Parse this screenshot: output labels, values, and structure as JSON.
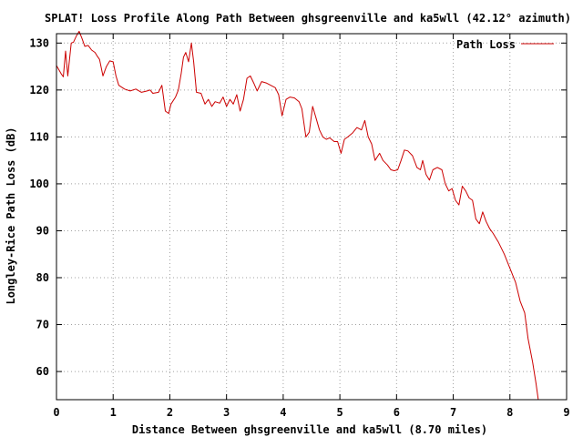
{
  "chart_data": {
    "type": "line",
    "title": "SPLAT! Loss Profile Along Path Between ghsgreenville and ka5wll (42.12° azimuth)",
    "xlabel": "Distance Between ghsgreenville and ka5wll (8.70 miles)",
    "ylabel": "Longley-Rice Path Loss (dB)",
    "xlim": [
      0,
      9
    ],
    "ylim": [
      54,
      132
    ],
    "x_ticks": [
      0,
      1,
      2,
      3,
      4,
      5,
      6,
      7,
      8,
      9
    ],
    "y_ticks": [
      60,
      70,
      80,
      90,
      100,
      110,
      120,
      130
    ],
    "grid": true,
    "legend_position": "top-right",
    "colors": {
      "series": "#cc0000",
      "grid": "#a0a0a0",
      "axis": "#000000"
    },
    "series": [
      {
        "name": "Path Loss",
        "points": [
          [
            0.0,
            125.2
          ],
          [
            0.08,
            123.5
          ],
          [
            0.12,
            122.8
          ],
          [
            0.16,
            128.3
          ],
          [
            0.2,
            123.0
          ],
          [
            0.26,
            130.0
          ],
          [
            0.3,
            130.2
          ],
          [
            0.35,
            131.5
          ],
          [
            0.4,
            132.5
          ],
          [
            0.45,
            131.0
          ],
          [
            0.5,
            129.3
          ],
          [
            0.56,
            129.5
          ],
          [
            0.62,
            128.5
          ],
          [
            0.68,
            128.0
          ],
          [
            0.72,
            127.2
          ],
          [
            0.76,
            126.5
          ],
          [
            0.82,
            123.0
          ],
          [
            0.88,
            125.0
          ],
          [
            0.94,
            126.2
          ],
          [
            1.0,
            126.0
          ],
          [
            1.05,
            123.0
          ],
          [
            1.1,
            121.0
          ],
          [
            1.2,
            120.2
          ],
          [
            1.3,
            119.8
          ],
          [
            1.4,
            120.2
          ],
          [
            1.5,
            119.5
          ],
          [
            1.6,
            119.8
          ],
          [
            1.65,
            120.0
          ],
          [
            1.7,
            119.3
          ],
          [
            1.8,
            119.5
          ],
          [
            1.86,
            121.0
          ],
          [
            1.92,
            115.5
          ],
          [
            1.98,
            115.0
          ],
          [
            2.02,
            117.0
          ],
          [
            2.1,
            118.5
          ],
          [
            2.15,
            120.0
          ],
          [
            2.2,
            123.5
          ],
          [
            2.24,
            127.0
          ],
          [
            2.28,
            128.0
          ],
          [
            2.33,
            126.0
          ],
          [
            2.38,
            130.0
          ],
          [
            2.42,
            126.0
          ],
          [
            2.47,
            119.5
          ],
          [
            2.55,
            119.3
          ],
          [
            2.62,
            117.0
          ],
          [
            2.68,
            118.0
          ],
          [
            2.74,
            116.5
          ],
          [
            2.8,
            117.5
          ],
          [
            2.88,
            117.2
          ],
          [
            2.94,
            118.5
          ],
          [
            3.0,
            116.5
          ],
          [
            3.06,
            118.0
          ],
          [
            3.12,
            117.0
          ],
          [
            3.18,
            119.0
          ],
          [
            3.24,
            115.5
          ],
          [
            3.3,
            118.0
          ],
          [
            3.36,
            122.5
          ],
          [
            3.42,
            123.0
          ],
          [
            3.48,
            121.5
          ],
          [
            3.54,
            119.8
          ],
          [
            3.62,
            121.8
          ],
          [
            3.7,
            121.5
          ],
          [
            3.78,
            121.0
          ],
          [
            3.86,
            120.5
          ],
          [
            3.92,
            119.0
          ],
          [
            3.98,
            114.5
          ],
          [
            4.05,
            118.0
          ],
          [
            4.12,
            118.5
          ],
          [
            4.2,
            118.3
          ],
          [
            4.28,
            117.5
          ],
          [
            4.33,
            116.0
          ],
          [
            4.4,
            110.0
          ],
          [
            4.46,
            111.0
          ],
          [
            4.52,
            116.5
          ],
          [
            4.58,
            114.0
          ],
          [
            4.64,
            111.5
          ],
          [
            4.7,
            110.0
          ],
          [
            4.76,
            109.5
          ],
          [
            4.82,
            109.8
          ],
          [
            4.9,
            109.0
          ],
          [
            4.96,
            109.0
          ],
          [
            5.02,
            106.5
          ],
          [
            5.08,
            109.5
          ],
          [
            5.14,
            110.0
          ],
          [
            5.22,
            110.8
          ],
          [
            5.3,
            112.0
          ],
          [
            5.38,
            111.5
          ],
          [
            5.44,
            113.5
          ],
          [
            5.5,
            110.0
          ],
          [
            5.56,
            108.5
          ],
          [
            5.62,
            105.0
          ],
          [
            5.7,
            106.5
          ],
          [
            5.76,
            105.0
          ],
          [
            5.84,
            104.0
          ],
          [
            5.9,
            103.0
          ],
          [
            5.96,
            102.8
          ],
          [
            6.02,
            103.0
          ],
          [
            6.08,
            105.0
          ],
          [
            6.14,
            107.2
          ],
          [
            6.2,
            107.0
          ],
          [
            6.28,
            106.0
          ],
          [
            6.36,
            103.5
          ],
          [
            6.42,
            103.0
          ],
          [
            6.46,
            105.0
          ],
          [
            6.52,
            102.0
          ],
          [
            6.58,
            100.8
          ],
          [
            6.64,
            103.0
          ],
          [
            6.72,
            103.5
          ],
          [
            6.8,
            103.0
          ],
          [
            6.86,
            100.0
          ],
          [
            6.92,
            98.5
          ],
          [
            6.98,
            99.0
          ],
          [
            7.04,
            96.5
          ],
          [
            7.1,
            95.5
          ],
          [
            7.16,
            99.5
          ],
          [
            7.22,
            98.5
          ],
          [
            7.28,
            97.0
          ],
          [
            7.34,
            96.5
          ],
          [
            7.4,
            92.5
          ],
          [
            7.46,
            91.5
          ],
          [
            7.52,
            94.0
          ],
          [
            7.58,
            92.0
          ],
          [
            7.64,
            90.5
          ],
          [
            7.7,
            89.5
          ],
          [
            7.8,
            87.5
          ],
          [
            7.9,
            85.0
          ],
          [
            8.0,
            82.0
          ],
          [
            8.1,
            79.0
          ],
          [
            8.18,
            75.0
          ],
          [
            8.26,
            72.5
          ],
          [
            8.32,
            67.0
          ],
          [
            8.4,
            62.0
          ],
          [
            8.46,
            57.5
          ],
          [
            8.5,
            54.0
          ]
        ]
      }
    ]
  }
}
